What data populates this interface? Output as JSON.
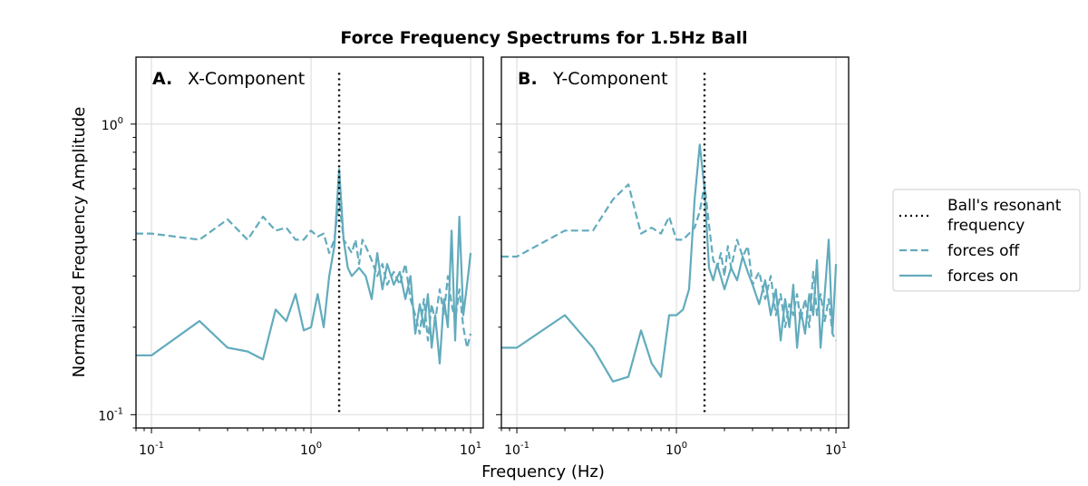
{
  "chart_data": {
    "type": "line",
    "title": "Force Frequency Spectrums for 1.5Hz Ball",
    "xlabel": "Frequency (Hz)",
    "ylabel": "Normalized Frequency Amplitude",
    "xscale": "log",
    "yscale": "log",
    "xlim": [
      0.08,
      12
    ],
    "ylim": [
      0.09,
      1.7
    ],
    "grid": true,
    "legend_placement": "right, outside",
    "x_tick_labels": [
      "10^-1",
      "10^0",
      "10^1"
    ],
    "y_tick_labels": [
      "10^0",
      "10^-1"
    ],
    "series_color": "#62abbd",
    "resonant_line_color": "#000000",
    "legend": {
      "items": [
        {
          "label_line1": "Ball's resonant",
          "label_line2": "frequency",
          "style": "dotted",
          "color": "#000000"
        },
        {
          "label_line1": "forces off",
          "label_line2": "",
          "style": "dashed",
          "color": "#62abbd"
        },
        {
          "label_line1": "forces on",
          "label_line2": "",
          "style": "solid",
          "color": "#62abbd"
        }
      ]
    },
    "panels": [
      {
        "letter": "A.",
        "subtitle": "X-Component",
        "resonant_frequency": 1.5,
        "series": [
          {
            "name": "forces off",
            "style": "dashed",
            "points": [
              [
                0.08,
                0.42
              ],
              [
                0.1,
                0.42
              ],
              [
                0.2,
                0.4
              ],
              [
                0.3,
                0.47
              ],
              [
                0.4,
                0.4
              ],
              [
                0.5,
                0.48
              ],
              [
                0.6,
                0.43
              ],
              [
                0.7,
                0.44
              ],
              [
                0.8,
                0.4
              ],
              [
                0.9,
                0.4
              ],
              [
                1.0,
                0.43
              ],
              [
                1.1,
                0.41
              ],
              [
                1.2,
                0.42
              ],
              [
                1.3,
                0.36
              ],
              [
                1.4,
                0.4
              ],
              [
                1.5,
                0.55
              ],
              [
                1.6,
                0.4
              ],
              [
                1.7,
                0.38
              ],
              [
                1.8,
                0.36
              ],
              [
                1.9,
                0.4
              ],
              [
                2.0,
                0.33
              ],
              [
                2.1,
                0.4
              ],
              [
                2.2,
                0.38
              ],
              [
                2.4,
                0.34
              ],
              [
                2.6,
                0.3
              ],
              [
                2.8,
                0.33
              ],
              [
                3.0,
                0.28
              ],
              [
                3.3,
                0.31
              ],
              [
                3.6,
                0.28
              ],
              [
                3.9,
                0.33
              ],
              [
                4.2,
                0.25
              ],
              [
                4.5,
                0.22
              ],
              [
                4.8,
                0.19
              ],
              [
                5.1,
                0.25
              ],
              [
                5.4,
                0.18
              ],
              [
                5.7,
                0.24
              ],
              [
                6.0,
                0.21
              ],
              [
                6.4,
                0.27
              ],
              [
                6.8,
                0.22
              ],
              [
                7.2,
                0.3
              ],
              [
                7.6,
                0.24
              ],
              [
                8.0,
                0.21
              ],
              [
                8.5,
                0.27
              ],
              [
                9.0,
                0.2
              ],
              [
                9.5,
                0.17
              ],
              [
                10.0,
                0.19
              ]
            ]
          },
          {
            "name": "forces on",
            "style": "solid",
            "points": [
              [
                0.08,
                0.16
              ],
              [
                0.1,
                0.16
              ],
              [
                0.2,
                0.21
              ],
              [
                0.3,
                0.17
              ],
              [
                0.4,
                0.165
              ],
              [
                0.5,
                0.155
              ],
              [
                0.6,
                0.23
              ],
              [
                0.7,
                0.21
              ],
              [
                0.8,
                0.26
              ],
              [
                0.9,
                0.195
              ],
              [
                1.0,
                0.2
              ],
              [
                1.1,
                0.26
              ],
              [
                1.2,
                0.2
              ],
              [
                1.3,
                0.3
              ],
              [
                1.4,
                0.38
              ],
              [
                1.5,
                0.7
              ],
              [
                1.6,
                0.4
              ],
              [
                1.7,
                0.32
              ],
              [
                1.8,
                0.3
              ],
              [
                2.0,
                0.32
              ],
              [
                2.2,
                0.3
              ],
              [
                2.4,
                0.25
              ],
              [
                2.6,
                0.36
              ],
              [
                2.8,
                0.27
              ],
              [
                3.0,
                0.33
              ],
              [
                3.3,
                0.28
              ],
              [
                3.6,
                0.31
              ],
              [
                3.9,
                0.25
              ],
              [
                4.2,
                0.3
              ],
              [
                4.5,
                0.19
              ],
              [
                4.8,
                0.24
              ],
              [
                5.1,
                0.2
              ],
              [
                5.4,
                0.26
              ],
              [
                5.7,
                0.17
              ],
              [
                6.0,
                0.22
              ],
              [
                6.4,
                0.15
              ],
              [
                6.8,
                0.25
              ],
              [
                7.2,
                0.2
              ],
              [
                7.6,
                0.43
              ],
              [
                8.0,
                0.18
              ],
              [
                8.5,
                0.48
              ],
              [
                9.0,
                0.22
              ],
              [
                9.5,
                0.28
              ],
              [
                10.0,
                0.36
              ]
            ]
          }
        ]
      },
      {
        "letter": "B.",
        "subtitle": "Y-Component",
        "resonant_frequency": 1.5,
        "series": [
          {
            "name": "forces off",
            "style": "dashed",
            "points": [
              [
                0.08,
                0.35
              ],
              [
                0.1,
                0.35
              ],
              [
                0.2,
                0.43
              ],
              [
                0.3,
                0.43
              ],
              [
                0.4,
                0.55
              ],
              [
                0.5,
                0.62
              ],
              [
                0.6,
                0.42
              ],
              [
                0.7,
                0.44
              ],
              [
                0.8,
                0.42
              ],
              [
                0.9,
                0.48
              ],
              [
                1.0,
                0.4
              ],
              [
                1.1,
                0.4
              ],
              [
                1.2,
                0.42
              ],
              [
                1.3,
                0.44
              ],
              [
                1.4,
                0.5
              ],
              [
                1.5,
                0.62
              ],
              [
                1.6,
                0.45
              ],
              [
                1.7,
                0.34
              ],
              [
                1.8,
                0.32
              ],
              [
                1.9,
                0.36
              ],
              [
                2.0,
                0.3
              ],
              [
                2.1,
                0.38
              ],
              [
                2.2,
                0.32
              ],
              [
                2.4,
                0.4
              ],
              [
                2.6,
                0.35
              ],
              [
                2.8,
                0.38
              ],
              [
                3.0,
                0.28
              ],
              [
                3.3,
                0.31
              ],
              [
                3.6,
                0.25
              ],
              [
                3.9,
                0.3
              ],
              [
                4.2,
                0.22
              ],
              [
                4.5,
                0.26
              ],
              [
                4.8,
                0.2
              ],
              [
                5.1,
                0.24
              ],
              [
                5.4,
                0.22
              ],
              [
                5.7,
                0.26
              ],
              [
                6.0,
                0.21
              ],
              [
                6.4,
                0.25
              ],
              [
                6.8,
                0.2
              ],
              [
                7.2,
                0.31
              ],
              [
                7.6,
                0.22
              ],
              [
                8.0,
                0.26
              ],
              [
                8.5,
                0.21
              ],
              [
                9.0,
                0.25
              ],
              [
                9.5,
                0.19
              ],
              [
                10.0,
                0.18
              ]
            ]
          },
          {
            "name": "forces on",
            "style": "solid",
            "points": [
              [
                0.08,
                0.17
              ],
              [
                0.1,
                0.17
              ],
              [
                0.2,
                0.22
              ],
              [
                0.3,
                0.17
              ],
              [
                0.4,
                0.13
              ],
              [
                0.5,
                0.135
              ],
              [
                0.6,
                0.195
              ],
              [
                0.7,
                0.15
              ],
              [
                0.8,
                0.135
              ],
              [
                0.9,
                0.22
              ],
              [
                1.0,
                0.22
              ],
              [
                1.1,
                0.23
              ],
              [
                1.2,
                0.27
              ],
              [
                1.3,
                0.55
              ],
              [
                1.4,
                0.85
              ],
              [
                1.5,
                0.6
              ],
              [
                1.6,
                0.32
              ],
              [
                1.7,
                0.29
              ],
              [
                1.8,
                0.33
              ],
              [
                2.0,
                0.27
              ],
              [
                2.2,
                0.32
              ],
              [
                2.4,
                0.29
              ],
              [
                2.6,
                0.35
              ],
              [
                2.8,
                0.31
              ],
              [
                3.0,
                0.28
              ],
              [
                3.3,
                0.24
              ],
              [
                3.6,
                0.29
              ],
              [
                3.9,
                0.22
              ],
              [
                4.2,
                0.27
              ],
              [
                4.5,
                0.18
              ],
              [
                4.8,
                0.25
              ],
              [
                5.1,
                0.2
              ],
              [
                5.4,
                0.28
              ],
              [
                5.7,
                0.17
              ],
              [
                6.0,
                0.23
              ],
              [
                6.4,
                0.19
              ],
              [
                6.8,
                0.26
              ],
              [
                7.2,
                0.22
              ],
              [
                7.6,
                0.34
              ],
              [
                8.0,
                0.17
              ],
              [
                8.5,
                0.26
              ],
              [
                9.0,
                0.4
              ],
              [
                9.5,
                0.19
              ],
              [
                10.0,
                0.33
              ]
            ]
          }
        ]
      }
    ]
  }
}
